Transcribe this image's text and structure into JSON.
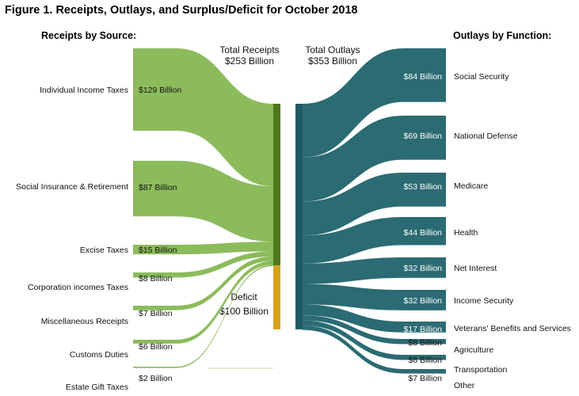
{
  "title": "Figure 1. Receipts, Outlays, and Surplus/Deficit for October 2018",
  "chart_data": {
    "type": "sankey",
    "unit": "Billion",
    "receipts_header": "Receipts by Source:",
    "outlays_header": "Outlays by Function:",
    "total_receipts": {
      "label": "Total Receipts",
      "value_text": "$253 Billion",
      "value": 253
    },
    "total_outlays": {
      "label": "Total Outlays",
      "value_text": "$353 Billion",
      "value": 353
    },
    "deficit": {
      "label": "Deficit",
      "value_text": "$100 Billion",
      "value": 100
    },
    "receipts": [
      {
        "name": "Individual Income Taxes",
        "value": 129,
        "value_text": "$129 Billion"
      },
      {
        "name": "Social Insurance & Retirement",
        "value": 87,
        "value_text": "$87 Billion"
      },
      {
        "name": "Excise Taxes",
        "value": 15,
        "value_text": "$15 Billion"
      },
      {
        "name": "Corporation incomes Taxes",
        "value": 8,
        "value_text": "$8 Billion"
      },
      {
        "name": "Miscellaneous Receipts",
        "value": 7,
        "value_text": "$7 Billion"
      },
      {
        "name": "Customs Duties",
        "value": 6,
        "value_text": "$6 Billion"
      },
      {
        "name": "Estate Gift Taxes",
        "value": 2,
        "value_text": "$2 Billion"
      }
    ],
    "outlays": [
      {
        "name": "Social Security",
        "value": 84,
        "value_text": "$84 Billion"
      },
      {
        "name": "National Defense",
        "value": 69,
        "value_text": "$69 Billion"
      },
      {
        "name": "Medicare",
        "value": 53,
        "value_text": "$53 Billion"
      },
      {
        "name": "Health",
        "value": 44,
        "value_text": "$44 Billion"
      },
      {
        "name": "Net Interest",
        "value": 32,
        "value_text": "$32 Billion"
      },
      {
        "name": "Income Security",
        "value": 32,
        "value_text": "$32 Billion"
      },
      {
        "name": "Veterans' Benefits and Services",
        "value": 17,
        "value_text": "$17 Billion"
      },
      {
        "name": "Agriculture",
        "value": 8,
        "value_text": "$8 Billion"
      },
      {
        "name": "Transportation",
        "value": 8,
        "value_text": "$8 Billion"
      },
      {
        "name": "Other",
        "value": 7,
        "value_text": "$7 Billion"
      }
    ],
    "colors": {
      "receipts_flow": "#8cbb5c",
      "receipts_bar": "#4d7a1a",
      "deficit_bar": "#d6a218",
      "outlays_flow": "#2b6b73",
      "outlays_bar": "#1f5a62"
    }
  }
}
